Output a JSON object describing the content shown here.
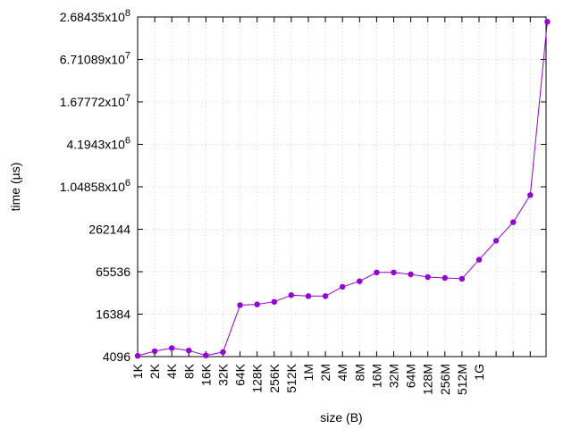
{
  "chart_data": {
    "type": "line",
    "xlabel": "size (B)",
    "ylabel": "time (µs)",
    "y_scale": "log4",
    "ylim": [
      4096,
      268435456
    ],
    "grid": true,
    "x_tick_labels": [
      "1K",
      "2K",
      "4K",
      "8K",
      "16K",
      "32K",
      "64K",
      "128K",
      "256K",
      "512K",
      "1M",
      "2M",
      "4M",
      "8M",
      "16M",
      "32M",
      "64M",
      "128M",
      "256M",
      "512M",
      "1G"
    ],
    "y_ticks": [
      {
        "value": 4096,
        "label": "4096",
        "exp": ""
      },
      {
        "value": 16384,
        "label": "16384",
        "exp": ""
      },
      {
        "value": 65536,
        "label": "65536",
        "exp": ""
      },
      {
        "value": 262144,
        "label": "262144",
        "exp": ""
      },
      {
        "value": 1048576,
        "label": "1.04858x10",
        "exp": "6"
      },
      {
        "value": 4194304,
        "label": "4.1943x10",
        "exp": "6"
      },
      {
        "value": 16777216,
        "label": "1.67772x10",
        "exp": "7"
      },
      {
        "value": 67108864,
        "label": "6.71089x10",
        "exp": "7"
      },
      {
        "value": 268435456,
        "label": "2.68435x10",
        "exp": "8"
      }
    ],
    "series": [
      {
        "color": "#9400d3",
        "x": [
          1024,
          2048,
          4096,
          8192,
          16384,
          32768,
          65536,
          131072,
          262144,
          524288,
          1048576,
          2097152,
          4194304,
          8388608,
          16777216,
          33554432,
          67108864,
          134217728,
          268435456,
          536870912,
          1073741824,
          2147483648,
          4294967296,
          8589934592,
          17179869184
        ],
        "values": [
          4200,
          4900,
          5400,
          5000,
          4250,
          4750,
          22000,
          22500,
          24500,
          30500,
          29500,
          29500,
          40000,
          48000,
          64000,
          64000,
          60000,
          55000,
          53500,
          52000,
          97000,
          180000,
          330000,
          800000,
          230000000
        ]
      }
    ]
  }
}
